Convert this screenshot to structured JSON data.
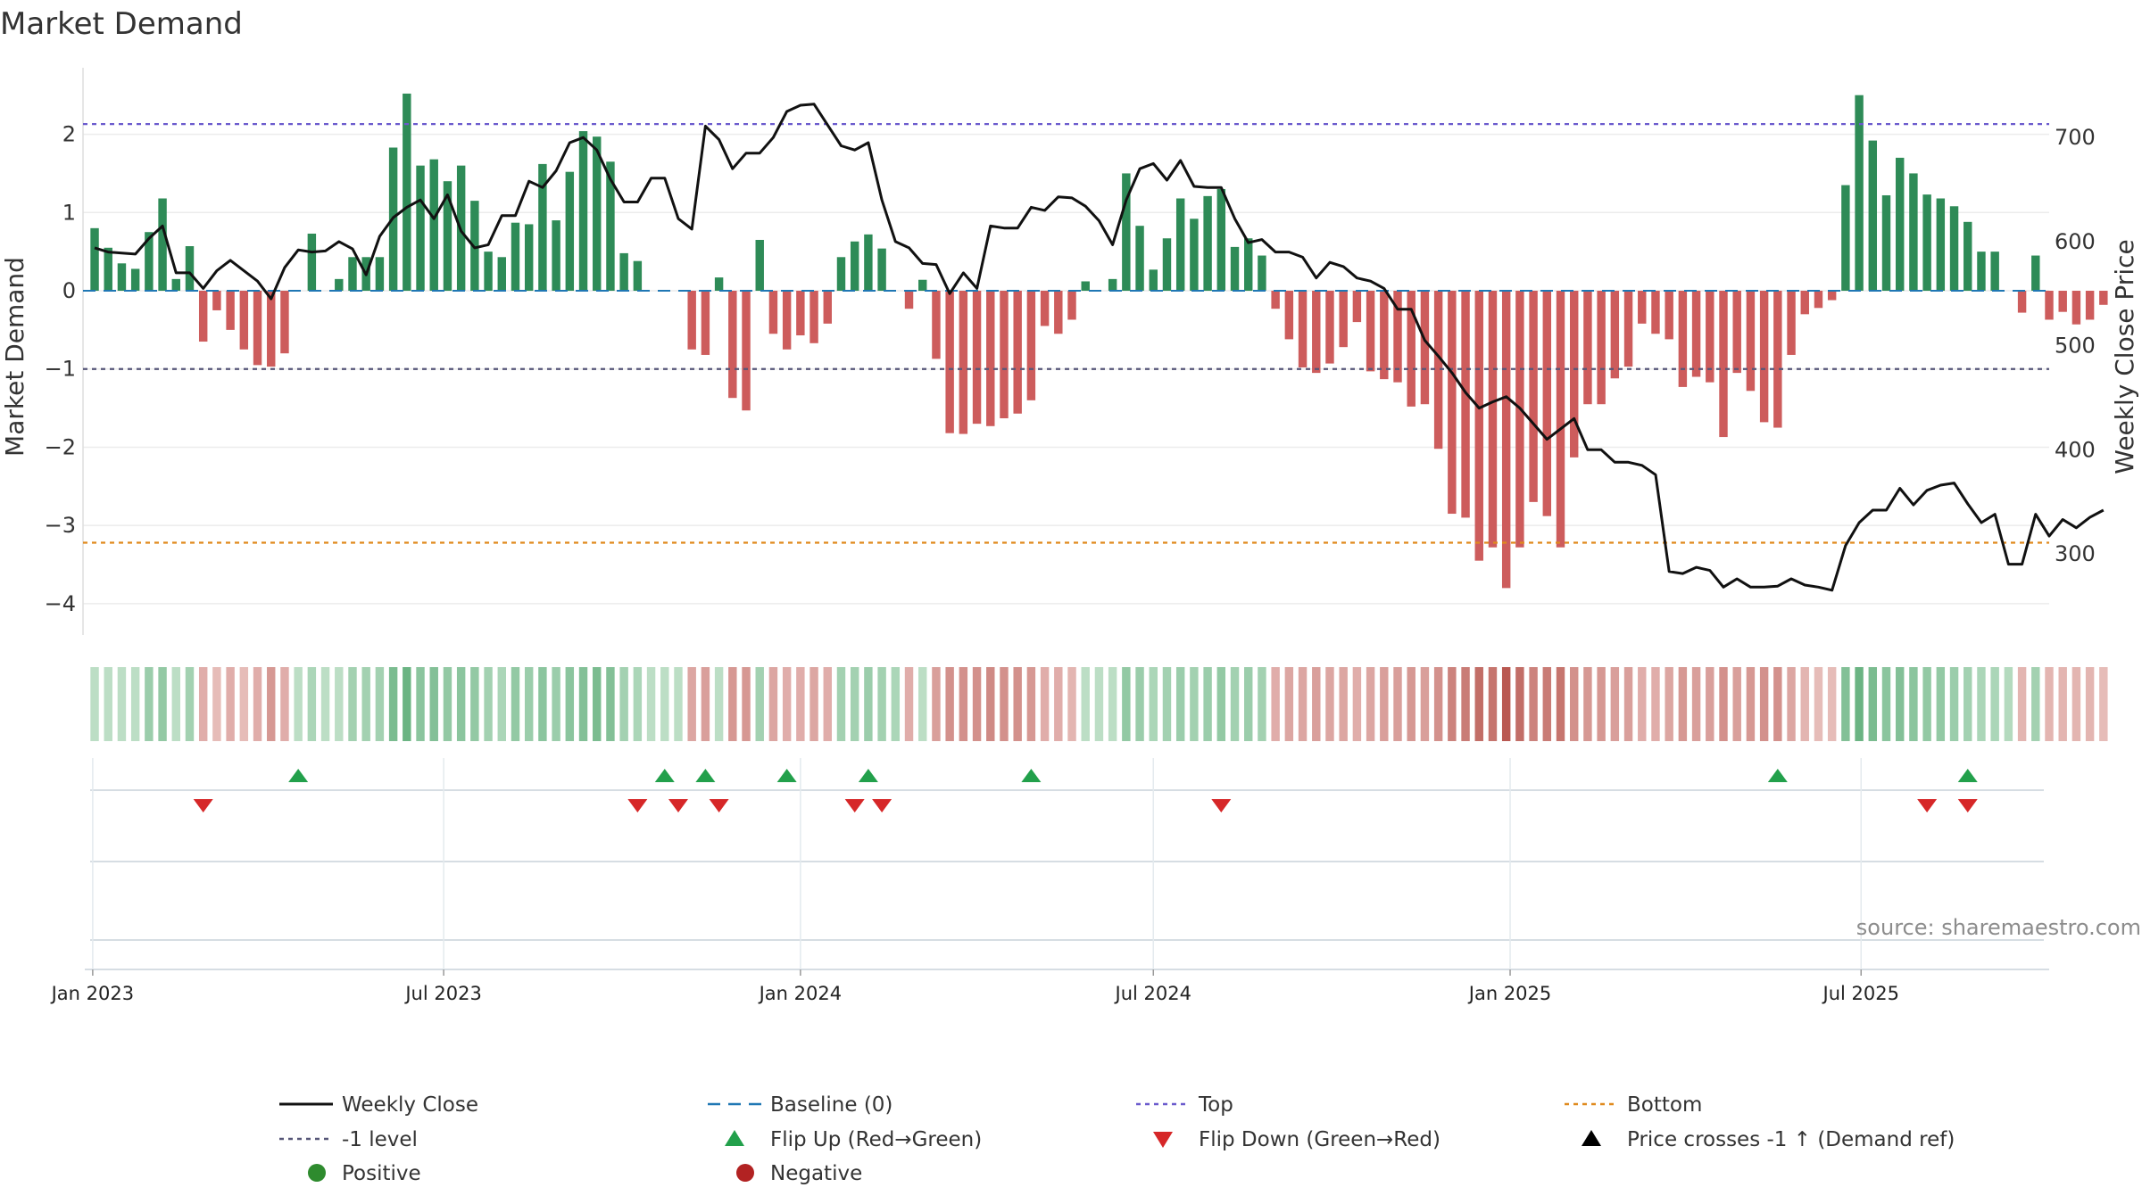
{
  "chart_data": {
    "type": "bar",
    "title": "Market Demand",
    "ylabel": "Market Demand",
    "y2label": "Weekly Close Price",
    "ylim": [
      -4.4,
      2.85
    ],
    "y2lim": [
      222,
      767
    ],
    "yticks": [
      -4,
      -3,
      -2,
      -1,
      0,
      1,
      2
    ],
    "y2ticks": [
      300,
      400,
      500,
      600,
      700
    ],
    "date_ticks": [
      "Jan 2023",
      "Jul 2023",
      "Jan 2024",
      "Jul 2024",
      "Jan 2025",
      "Jul 2025"
    ],
    "x_range": [
      "2022-12-27",
      "2025-10-06"
    ],
    "first_week": "2023-01-02",
    "reference_lines": {
      "top": 2.13,
      "bottom": -3.22,
      "minus_one": -1.0,
      "baseline": 0
    },
    "colors": {
      "positive": "#2e8b57",
      "negative": "#cd5c5c",
      "price": "#111111",
      "top": "#6a5acd",
      "bottom": "#e08a1e",
      "flip_up": "#22a04b",
      "flip_down": "#d62728"
    },
    "demand": [
      0.8,
      0.55,
      0.35,
      0.28,
      0.75,
      1.18,
      0.15,
      0.57,
      -0.65,
      -0.25,
      -0.5,
      -0.75,
      -0.95,
      -0.97,
      -0.8,
      0.0,
      0.73,
      0.0,
      0.15,
      0.43,
      0.43,
      0.43,
      1.83,
      2.52,
      1.6,
      1.68,
      1.4,
      1.6,
      1.15,
      0.5,
      0.43,
      0.87,
      0.85,
      1.62,
      0.9,
      1.52,
      2.04,
      1.97,
      1.65,
      0.48,
      0.38,
      0.0,
      0.0,
      0.0,
      -0.75,
      -0.82,
      0.17,
      -1.37,
      -1.53,
      0.65,
      -0.55,
      -0.75,
      -0.57,
      -0.67,
      -0.42,
      0.43,
      0.63,
      0.72,
      0.54,
      0.0,
      -0.23,
      0.14,
      -0.87,
      -1.82,
      -1.83,
      -1.7,
      -1.73,
      -1.63,
      -1.57,
      -1.4,
      -0.45,
      -0.55,
      -0.37,
      0.12,
      0.0,
      0.15,
      1.5,
      0.83,
      0.27,
      0.67,
      1.18,
      0.92,
      1.21,
      1.3,
      0.56,
      0.67,
      0.45,
      -0.23,
      -0.62,
      -0.98,
      -1.05,
      -0.93,
      -0.72,
      -0.4,
      -1.03,
      -1.13,
      -1.17,
      -1.48,
      -1.45,
      -2.02,
      -2.85,
      -2.9,
      -3.45,
      -3.28,
      -3.8,
      -3.28,
      -2.7,
      -2.88,
      -3.28,
      -2.13,
      -1.45,
      -1.45,
      -1.12,
      -0.97,
      -0.42,
      -0.55,
      -0.62,
      -1.23,
      -1.1,
      -1.17,
      -1.87,
      -1.05,
      -1.28,
      -1.68,
      -1.75,
      -0.82,
      -0.3,
      -0.22,
      -0.12,
      1.35,
      2.5,
      1.92,
      1.22,
      1.7,
      1.5,
      1.23,
      1.18,
      1.08,
      0.88,
      0.5,
      0.5,
      0.0,
      -0.28,
      0.45,
      -0.37,
      -0.27,
      -0.43,
      -0.37,
      -0.18
    ],
    "price": [
      594,
      590,
      589,
      588,
      603,
      615,
      570,
      570,
      555,
      572,
      582,
      572,
      562,
      545,
      575,
      592,
      590,
      591,
      600,
      593,
      568,
      605,
      623,
      633,
      640,
      622,
      645,
      610,
      594,
      597,
      625,
      625,
      658,
      652,
      668,
      695,
      700,
      688,
      660,
      638,
      638,
      661,
      661,
      622,
      612,
      711,
      698,
      670,
      685,
      685,
      700,
      725,
      731,
      732,
      712,
      692,
      688,
      695,
      640,
      600,
      594,
      579,
      578,
      550,
      570,
      555,
      615,
      613,
      613,
      633,
      630,
      643,
      642,
      634,
      620,
      597,
      640,
      670,
      675,
      659,
      678,
      653,
      652,
      652,
      622,
      599,
      602,
      590,
      590,
      585,
      565,
      580,
      576,
      565,
      562,
      555,
      535,
      535,
      505,
      490,
      474,
      455,
      440,
      446,
      451,
      440,
      425,
      410,
      420,
      430,
      400,
      400,
      388,
      388,
      385,
      376,
      283,
      281,
      287,
      284,
      268,
      276,
      268,
      268,
      269,
      276,
      270,
      268,
      265,
      308,
      330,
      342,
      342,
      363,
      347,
      361,
      366,
      368,
      348,
      330,
      338,
      290,
      290,
      338,
      317,
      333,
      325,
      335,
      342
    ],
    "heat_levels": [
      0.2,
      0.2,
      0.2,
      0.2,
      0.4,
      0.45,
      0.2,
      0.35,
      0.3,
      0.2,
      0.3,
      0.2,
      0.3,
      0.45,
      0.3,
      0.2,
      0.3,
      0.2,
      0.2,
      0.35,
      0.35,
      0.35,
      0.6,
      0.7,
      0.5,
      0.55,
      0.45,
      0.5,
      0.45,
      0.35,
      0.3,
      0.45,
      0.4,
      0.5,
      0.4,
      0.5,
      0.55,
      0.6,
      0.55,
      0.35,
      0.3,
      0.2,
      0.2,
      0.2,
      0.35,
      0.4,
      0.2,
      0.45,
      0.45,
      0.35,
      0.35,
      0.3,
      0.3,
      0.35,
      0.3,
      0.35,
      0.35,
      0.4,
      0.35,
      0.3,
      0.3,
      0.2,
      0.4,
      0.5,
      0.5,
      0.5,
      0.55,
      0.5,
      0.5,
      0.45,
      0.3,
      0.3,
      0.25,
      0.2,
      0.2,
      0.2,
      0.45,
      0.4,
      0.3,
      0.35,
      0.4,
      0.35,
      0.4,
      0.45,
      0.35,
      0.4,
      0.35,
      0.3,
      0.35,
      0.35,
      0.4,
      0.35,
      0.35,
      0.3,
      0.35,
      0.4,
      0.4,
      0.45,
      0.4,
      0.5,
      0.6,
      0.65,
      0.75,
      0.7,
      0.9,
      0.75,
      0.6,
      0.65,
      0.7,
      0.5,
      0.45,
      0.45,
      0.4,
      0.4,
      0.3,
      0.3,
      0.35,
      0.45,
      0.4,
      0.4,
      0.5,
      0.4,
      0.45,
      0.5,
      0.5,
      0.35,
      0.25,
      0.2,
      0.2,
      0.55,
      0.7,
      0.6,
      0.5,
      0.55,
      0.5,
      0.45,
      0.45,
      0.4,
      0.35,
      0.3,
      0.3,
      0.25,
      0.25,
      0.35,
      0.25,
      0.25,
      0.25,
      0.25,
      0.2
    ],
    "flip_up_weeks": [
      15,
      42,
      45,
      51,
      57,
      69,
      124,
      138
    ],
    "flip_down_weeks": [
      8,
      40,
      43,
      46,
      56,
      58,
      83,
      135,
      138
    ],
    "grid": true,
    "legend_position": "bottom",
    "legend": [
      {
        "label": "Weekly Close",
        "marker": "line-solid",
        "color": "#111111"
      },
      {
        "label": "Baseline (0)",
        "marker": "line-dashed",
        "color": "#1f77b4"
      },
      {
        "label": "Top",
        "marker": "line-dotted",
        "color": "#6a5acd"
      },
      {
        "label": "Bottom",
        "marker": "line-dotted",
        "color": "#e08a1e"
      },
      {
        "label": "-1 level",
        "marker": "line-dotted",
        "color": "#555577"
      },
      {
        "label": "Flip Up (Red→Green)",
        "marker": "triangle-up",
        "color": "#22a04b"
      },
      {
        "label": "Flip Down (Green→Red)",
        "marker": "triangle-down",
        "color": "#d62728"
      },
      {
        "label": "Price crosses -1 ↑ (Demand ref)",
        "marker": "triangle-up",
        "color": "#000000"
      },
      {
        "label": "Positive",
        "marker": "circle",
        "color": "#2e8b2e"
      },
      {
        "label": "Negative",
        "marker": "circle",
        "color": "#b22222"
      }
    ],
    "source": "source: sharemaestro.com"
  }
}
